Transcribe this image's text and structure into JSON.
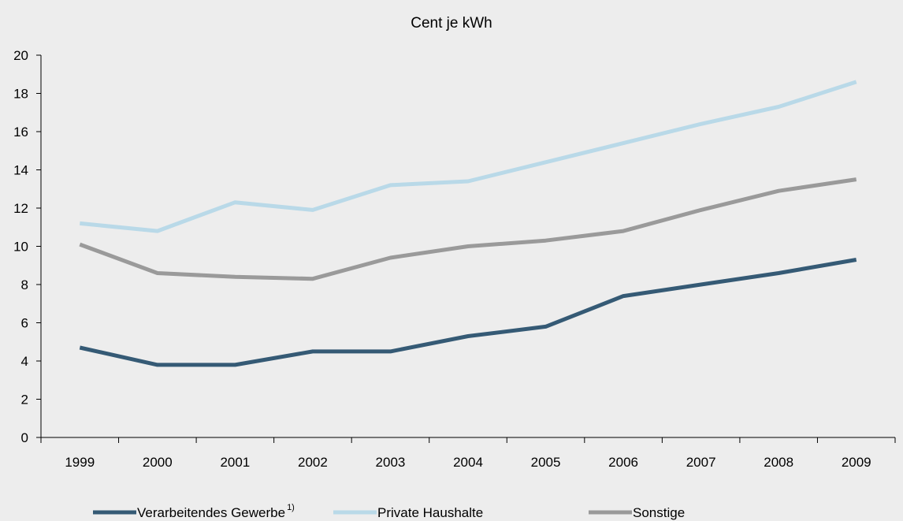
{
  "chart_data": {
    "type": "line",
    "title": "Cent je kWh",
    "xlabel": "",
    "ylabel": "",
    "categories": [
      "1999",
      "2000",
      "2001",
      "2002",
      "2003",
      "2004",
      "2005",
      "2006",
      "2007",
      "2008",
      "2009"
    ],
    "ylim": [
      0,
      20
    ],
    "yticks": [
      "0",
      "2",
      "4",
      "6",
      "8",
      "10",
      "12",
      "14",
      "16",
      "18",
      "20"
    ],
    "grid": false,
    "legend_position": "bottom",
    "series": [
      {
        "name": "Verarbeitendes Gewerbe",
        "footnote": "1)",
        "color": "#355a75",
        "values": [
          4.7,
          3.8,
          3.8,
          4.5,
          4.5,
          5.3,
          5.8,
          7.4,
          8.0,
          8.6,
          9.3
        ]
      },
      {
        "name": "Private Haushalte",
        "color": "#b9d9e8",
        "values": [
          11.2,
          10.8,
          12.3,
          11.9,
          13.2,
          13.4,
          14.4,
          15.4,
          16.4,
          17.3,
          18.6
        ]
      },
      {
        "name": "Sonstige",
        "color": "#9a9a9a",
        "values": [
          10.1,
          8.6,
          8.4,
          8.3,
          9.4,
          10.0,
          10.3,
          10.8,
          11.9,
          12.9,
          13.5
        ]
      }
    ]
  }
}
